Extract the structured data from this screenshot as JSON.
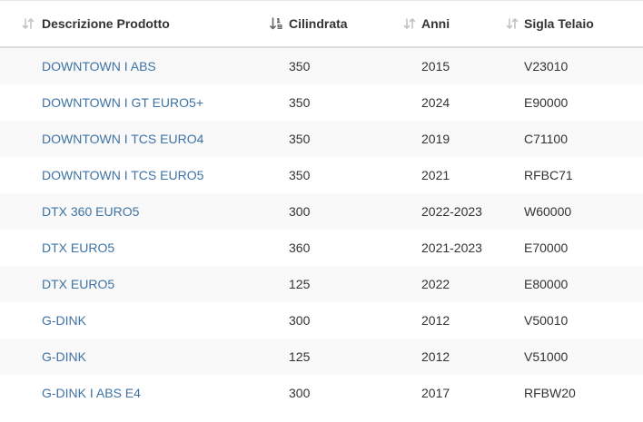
{
  "table": {
    "columns": [
      {
        "label": "Descrizione Prodotto",
        "sort_icon": "sort-arrows-icon",
        "sorted": false
      },
      {
        "label": "Cilindrata",
        "sort_icon": "sort-numeric-ascending-icon",
        "sorted": true
      },
      {
        "label": "Anni",
        "sort_icon": "sort-arrows-icon",
        "sorted": false
      },
      {
        "label": "Sigla Telaio",
        "sort_icon": "sort-arrows-icon",
        "sorted": false
      }
    ],
    "rows": [
      {
        "desc": "DOWNTOWN I ABS",
        "cil": "350",
        "anni": "2015",
        "sigla": "V23010"
      },
      {
        "desc": "DOWNTOWN I GT EURO5+",
        "cil": "350",
        "anni": "2024",
        "sigla": "E90000"
      },
      {
        "desc": "DOWNTOWN I TCS EURO4",
        "cil": "350",
        "anni": "2019",
        "sigla": "C71100"
      },
      {
        "desc": "DOWNTOWN I TCS EURO5",
        "cil": "350",
        "anni": "2021",
        "sigla": "RFBC71"
      },
      {
        "desc": "DTX 360 EURO5",
        "cil": "300",
        "anni": "2022-2023",
        "sigla": "W60000"
      },
      {
        "desc": "DTX EURO5",
        "cil": "360",
        "anni": "2021-2023",
        "sigla": "E70000"
      },
      {
        "desc": "DTX EURO5",
        "cil": "125",
        "anni": "2022",
        "sigla": "E80000"
      },
      {
        "desc": "G-DINK",
        "cil": "300",
        "anni": "2012",
        "sigla": "V50010"
      },
      {
        "desc": "G-DINK",
        "cil": "125",
        "anni": "2012",
        "sigla": "V51000"
      },
      {
        "desc": "G-DINK I ABS E4",
        "cil": "300",
        "anni": "2017",
        "sigla": "RFBW20"
      }
    ]
  },
  "colors": {
    "link": "#3e73a4",
    "text": "#333333",
    "stripe": "#f9f9f9",
    "sort_icon_inactive": "#c4c4c4",
    "sort_icon_active": "#666666"
  }
}
